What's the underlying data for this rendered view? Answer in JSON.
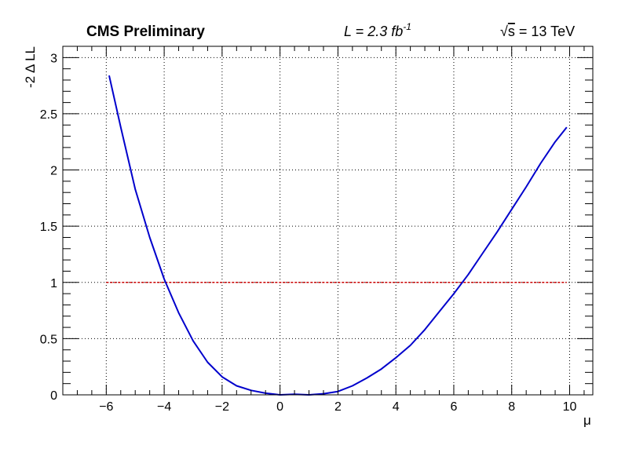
{
  "header": {
    "experiment_label": "CMS Preliminary",
    "lumi_prefix": "L = 2.3 fb",
    "lumi_exponent": "-1",
    "energy_sqrt": "√",
    "energy_s": "s",
    "energy_value": " = 13 TeV"
  },
  "chart_data": {
    "type": "line",
    "xlabel": "μ",
    "ylabel": "-2 Δ LL",
    "xlim": [
      -7.5,
      10.8
    ],
    "ylim": [
      0,
      3.1
    ],
    "x_ticks": [
      -6,
      -4,
      -2,
      0,
      2,
      4,
      6,
      8,
      10
    ],
    "x_tick_labels": [
      "−6",
      "−4",
      "−2",
      "0",
      "2",
      "4",
      "6",
      "8",
      "10"
    ],
    "y_ticks": [
      0,
      0.5,
      1,
      1.5,
      2,
      2.5,
      3
    ],
    "y_tick_labels": [
      "0",
      "0.5",
      "1",
      "1.5",
      "2",
      "2.5",
      "3"
    ],
    "grid": true,
    "colors": {
      "curve": "#0000cc",
      "threshold": "#cc0000"
    },
    "series": [
      {
        "x": [
          -5.9,
          -5.5,
          -5.0,
          -4.5,
          -4.0,
          -3.5,
          -3.0,
          -2.5,
          -2.0,
          -1.5,
          -1.0,
          -0.5,
          0.0,
          0.5,
          1.0,
          1.5,
          2.0,
          2.5,
          3.0,
          3.5,
          4.0,
          4.5,
          5.0,
          5.5,
          6.0,
          6.5,
          7.0,
          7.5,
          8.0,
          8.5,
          9.0,
          9.5,
          9.9
        ],
        "y": [
          2.84,
          2.38,
          1.83,
          1.4,
          1.03,
          0.73,
          0.48,
          0.29,
          0.16,
          0.08,
          0.04,
          0.015,
          0.0,
          0.005,
          0.0,
          0.01,
          0.03,
          0.08,
          0.15,
          0.23,
          0.33,
          0.44,
          0.58,
          0.74,
          0.9,
          1.07,
          1.26,
          1.45,
          1.65,
          1.85,
          2.06,
          2.25,
          2.38
        ]
      },
      {
        "x": [
          -6.0,
          9.9
        ],
        "y": [
          1.0,
          1.0
        ]
      }
    ]
  }
}
